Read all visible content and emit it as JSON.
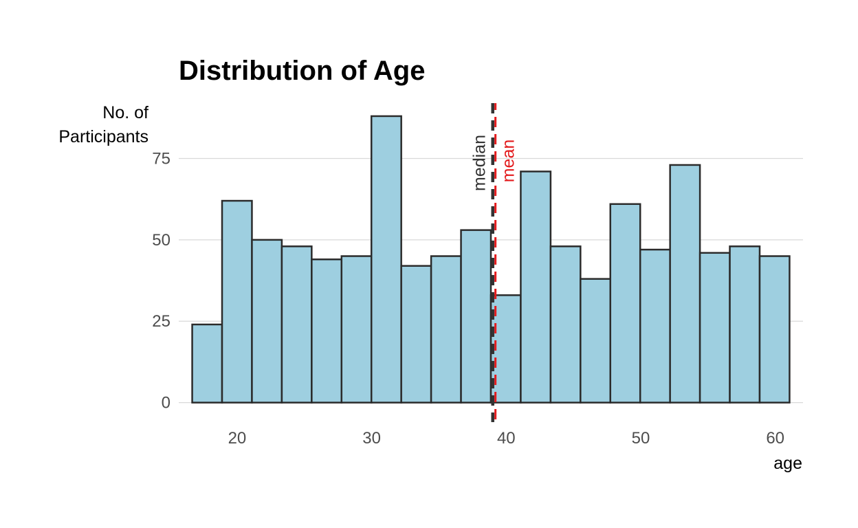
{
  "chart_data": {
    "type": "bar",
    "subtype": "histogram",
    "title": "Distribution of Age",
    "xlabel": "age",
    "ylabel_lines": [
      "No. of",
      "Participants"
    ],
    "bins": [
      {
        "x0": 16.66,
        "x1": 18.88,
        "count": 24
      },
      {
        "x0": 18.88,
        "x1": 21.1,
        "count": 62
      },
      {
        "x0": 21.1,
        "x1": 23.32,
        "count": 50
      },
      {
        "x0": 23.32,
        "x1": 25.54,
        "count": 48
      },
      {
        "x0": 25.54,
        "x1": 27.76,
        "count": 44
      },
      {
        "x0": 27.76,
        "x1": 29.98,
        "count": 45
      },
      {
        "x0": 29.98,
        "x1": 32.2,
        "count": 88
      },
      {
        "x0": 32.2,
        "x1": 34.42,
        "count": 42
      },
      {
        "x0": 34.42,
        "x1": 36.64,
        "count": 45
      },
      {
        "x0": 36.64,
        "x1": 38.86,
        "count": 53
      },
      {
        "x0": 38.86,
        "x1": 41.08,
        "count": 33
      },
      {
        "x0": 41.08,
        "x1": 43.3,
        "count": 71
      },
      {
        "x0": 43.3,
        "x1": 45.52,
        "count": 48
      },
      {
        "x0": 45.52,
        "x1": 47.74,
        "count": 38
      },
      {
        "x0": 47.74,
        "x1": 49.96,
        "count": 61
      },
      {
        "x0": 49.96,
        "x1": 52.18,
        "count": 47
      },
      {
        "x0": 52.18,
        "x1": 54.4,
        "count": 73
      },
      {
        "x0": 54.4,
        "x1": 56.62,
        "count": 46
      },
      {
        "x0": 56.62,
        "x1": 58.84,
        "count": 48
      },
      {
        "x0": 58.84,
        "x1": 61.06,
        "count": 45
      }
    ],
    "xlim": [
      15.66,
      62.06
    ],
    "ylim": [
      -6,
      92
    ],
    "xticks": [
      20,
      30,
      40,
      50,
      60
    ],
    "yticks": [
      0,
      25,
      50,
      75
    ],
    "grid": "horizontal",
    "median": {
      "value": 39,
      "label": "median",
      "color": "#333333"
    },
    "mean": {
      "value": 39.2,
      "label": "mean",
      "color": "#e31a1c"
    },
    "bar_fill": "#9ecfe0",
    "bar_stroke": "#2b2b2b"
  }
}
